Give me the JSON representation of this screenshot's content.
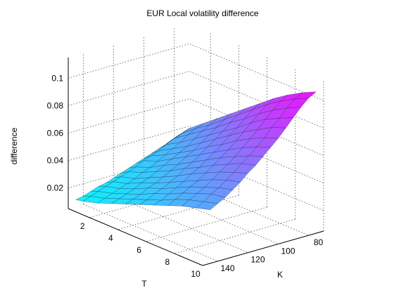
{
  "chart_data": {
    "type": "surface3d",
    "title": "EUR Local volatility difference",
    "xlabel": "K",
    "ylabel": "T",
    "zlabel": "difference",
    "x_ticks": [
      80,
      100,
      120,
      140
    ],
    "y_ticks": [
      2,
      4,
      6,
      8,
      10
    ],
    "z_ticks": [
      0.02,
      0.04,
      0.06,
      0.08,
      0.1
    ],
    "xlim": [
      70,
      150
    ],
    "ylim": [
      0.5,
      10
    ],
    "zlim": [
      0.005,
      0.115
    ],
    "grid": "on",
    "colormap": "cool",
    "colormap_colors": [
      "#00ffff",
      "#ff00ff"
    ],
    "K_grid": [
      75,
      80,
      85,
      90,
      95,
      100,
      105,
      110,
      115,
      120,
      125,
      130,
      135,
      140,
      145
    ],
    "T_grid": [
      0.5,
      1,
      2,
      3,
      4,
      5,
      6,
      7,
      8,
      9,
      10
    ],
    "values": [
      [
        0.036,
        0.034,
        0.032,
        0.03,
        0.028,
        0.026,
        0.024,
        0.022,
        0.02,
        0.018,
        0.016,
        0.015,
        0.013,
        0.011,
        0.01
      ],
      [
        0.042,
        0.04,
        0.038,
        0.035,
        0.032,
        0.03,
        0.028,
        0.025,
        0.023,
        0.021,
        0.019,
        0.017,
        0.015,
        0.013,
        0.011
      ],
      [
        0.05,
        0.048,
        0.045,
        0.041,
        0.038,
        0.035,
        0.032,
        0.029,
        0.027,
        0.024,
        0.022,
        0.02,
        0.018,
        0.016,
        0.014
      ],
      [
        0.058,
        0.055,
        0.052,
        0.048,
        0.044,
        0.041,
        0.038,
        0.035,
        0.032,
        0.029,
        0.027,
        0.024,
        0.022,
        0.02,
        0.018
      ],
      [
        0.066,
        0.063,
        0.059,
        0.055,
        0.051,
        0.047,
        0.044,
        0.04,
        0.037,
        0.034,
        0.031,
        0.029,
        0.026,
        0.024,
        0.022
      ],
      [
        0.074,
        0.071,
        0.067,
        0.062,
        0.058,
        0.054,
        0.05,
        0.046,
        0.043,
        0.039,
        0.036,
        0.033,
        0.031,
        0.028,
        0.026
      ],
      [
        0.082,
        0.079,
        0.074,
        0.069,
        0.065,
        0.06,
        0.056,
        0.052,
        0.048,
        0.045,
        0.041,
        0.038,
        0.035,
        0.032,
        0.03
      ],
      [
        0.09,
        0.087,
        0.082,
        0.077,
        0.072,
        0.067,
        0.062,
        0.058,
        0.054,
        0.05,
        0.046,
        0.043,
        0.04,
        0.037,
        0.034
      ],
      [
        0.097,
        0.094,
        0.089,
        0.084,
        0.078,
        0.073,
        0.068,
        0.063,
        0.059,
        0.055,
        0.051,
        0.047,
        0.044,
        0.041,
        0.038
      ],
      [
        0.103,
        0.1,
        0.095,
        0.089,
        0.084,
        0.078,
        0.073,
        0.068,
        0.064,
        0.059,
        0.055,
        0.051,
        0.048,
        0.044,
        0.041
      ],
      [
        0.108,
        0.105,
        0.1,
        0.094,
        0.088,
        0.082,
        0.077,
        0.072,
        0.067,
        0.063,
        0.058,
        0.054,
        0.05,
        0.047,
        0.044
      ]
    ]
  }
}
